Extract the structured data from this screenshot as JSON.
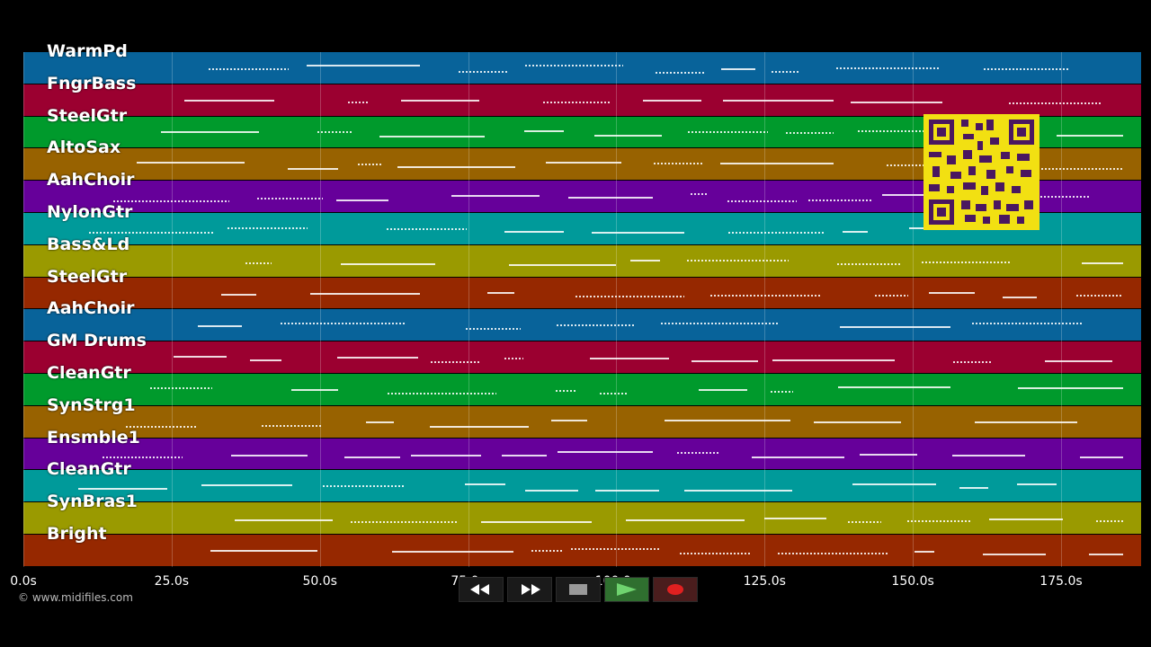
{
  "tracks": [
    {
      "name": "WarmPd",
      "color": "#08639a"
    },
    {
      "name": "FngrBass",
      "color": "#9b0030"
    },
    {
      "name": "SteelGtr",
      "color": "#009a2c"
    },
    {
      "name": "AltoSax",
      "color": "#986200"
    },
    {
      "name": "AahChoir",
      "color": "#66009a"
    },
    {
      "name": "NylonGtr",
      "color": "#009a9a"
    },
    {
      "name": "Bass&Ld",
      "color": "#9a9a00"
    },
    {
      "name": "SteelGtr",
      "color": "#962800"
    },
    {
      "name": "AahChoir",
      "color": "#08639a"
    },
    {
      "name": "GM Drums",
      "color": "#9b0030"
    },
    {
      "name": "CleanGtr",
      "color": "#009a2c"
    },
    {
      "name": "SynStrg1",
      "color": "#986200"
    },
    {
      "name": "Ensmble1",
      "color": "#66009a"
    },
    {
      "name": "CleanGtr",
      "color": "#009a9a"
    },
    {
      "name": "SynBras1",
      "color": "#9a9a00"
    },
    {
      "name": "Bright",
      "color": "#962800"
    }
  ],
  "timeline": {
    "ticks": [
      "0.0s",
      "25.0s",
      "50.0s",
      "75.0s",
      "100.0s",
      "125.0s",
      "150.0s",
      "175.0s"
    ],
    "tick_values": [
      0,
      25,
      50,
      75,
      100,
      125,
      150,
      175
    ],
    "max_seconds": 188.5
  },
  "watermark": "© www.midifiles.com",
  "transport": {
    "rewind_icon": "rewind-icon",
    "forward_icon": "fast-forward-icon",
    "stop_icon": "stop-icon",
    "play_icon": "play-icon",
    "record_icon": "record-icon"
  }
}
